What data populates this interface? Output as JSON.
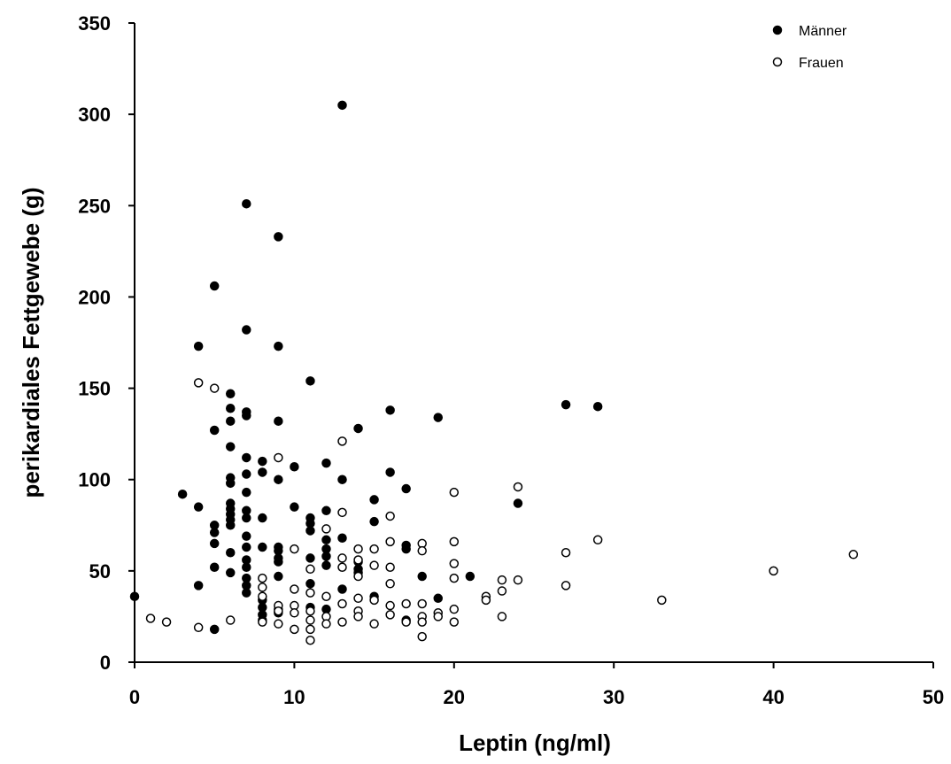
{
  "chart_data": {
    "type": "scatter",
    "title": "",
    "xlabel": "Leptin (ng/ml)",
    "ylabel": "perikardiales Fettgewebe (g)",
    "xlim": [
      0,
      50
    ],
    "ylim": [
      0,
      350
    ],
    "xticks": [
      0,
      10,
      20,
      30,
      40,
      50
    ],
    "yticks": [
      0,
      50,
      100,
      150,
      200,
      250,
      300,
      350
    ],
    "grid": false,
    "legend_position": "top-right",
    "series": [
      {
        "name": "Männer",
        "marker": "filled-circle",
        "color": "#000000",
        "points": [
          [
            0,
            36
          ],
          [
            3,
            92
          ],
          [
            4,
            173
          ],
          [
            4,
            85
          ],
          [
            4,
            42
          ],
          [
            5,
            206
          ],
          [
            5,
            127
          ],
          [
            5,
            75
          ],
          [
            5,
            71
          ],
          [
            5,
            65
          ],
          [
            5,
            52
          ],
          [
            5,
            18
          ],
          [
            6,
            147
          ],
          [
            6,
            139
          ],
          [
            6,
            132
          ],
          [
            6,
            118
          ],
          [
            6,
            101
          ],
          [
            6,
            98
          ],
          [
            6,
            87
          ],
          [
            6,
            84
          ],
          [
            6,
            81
          ],
          [
            6,
            78
          ],
          [
            6,
            75
          ],
          [
            6,
            60
          ],
          [
            6,
            49
          ],
          [
            7,
            251
          ],
          [
            7,
            182
          ],
          [
            7,
            137
          ],
          [
            7,
            135
          ],
          [
            7,
            112
          ],
          [
            7,
            103
          ],
          [
            7,
            93
          ],
          [
            7,
            83
          ],
          [
            7,
            79
          ],
          [
            7,
            69
          ],
          [
            7,
            63
          ],
          [
            7,
            56
          ],
          [
            7,
            52
          ],
          [
            7,
            46
          ],
          [
            7,
            42
          ],
          [
            7,
            38
          ],
          [
            8,
            110
          ],
          [
            8,
            104
          ],
          [
            8,
            79
          ],
          [
            8,
            63
          ],
          [
            8,
            34
          ],
          [
            8,
            30
          ],
          [
            8,
            26
          ],
          [
            8,
            23
          ],
          [
            9,
            233
          ],
          [
            9,
            173
          ],
          [
            9,
            132
          ],
          [
            9,
            100
          ],
          [
            9,
            63
          ],
          [
            9,
            61
          ],
          [
            9,
            57
          ],
          [
            9,
            55
          ],
          [
            9,
            47
          ],
          [
            9,
            29
          ],
          [
            9,
            27
          ],
          [
            10,
            107
          ],
          [
            10,
            85
          ],
          [
            11,
            154
          ],
          [
            11,
            79
          ],
          [
            11,
            76
          ],
          [
            11,
            72
          ],
          [
            11,
            57
          ],
          [
            11,
            43
          ],
          [
            11,
            30
          ],
          [
            12,
            109
          ],
          [
            12,
            83
          ],
          [
            12,
            67
          ],
          [
            12,
            62
          ],
          [
            12,
            58
          ],
          [
            12,
            53
          ],
          [
            12,
            29
          ],
          [
            13,
            305
          ],
          [
            13,
            100
          ],
          [
            13,
            68
          ],
          [
            13,
            40
          ],
          [
            14,
            128
          ],
          [
            14,
            55
          ],
          [
            14,
            51
          ],
          [
            14,
            49
          ],
          [
            15,
            89
          ],
          [
            15,
            77
          ],
          [
            15,
            36
          ],
          [
            16,
            138
          ],
          [
            16,
            104
          ],
          [
            17,
            95
          ],
          [
            17,
            64
          ],
          [
            17,
            62
          ],
          [
            17,
            23
          ],
          [
            18,
            47
          ],
          [
            19,
            134
          ],
          [
            19,
            35
          ],
          [
            21,
            47
          ],
          [
            24,
            87
          ],
          [
            27,
            141
          ],
          [
            29,
            140
          ]
        ]
      },
      {
        "name": "Frauen",
        "marker": "open-circle",
        "color": "#000000",
        "points": [
          [
            1,
            24
          ],
          [
            2,
            22
          ],
          [
            4,
            153
          ],
          [
            4,
            19
          ],
          [
            5,
            150
          ],
          [
            6,
            23
          ],
          [
            8,
            46
          ],
          [
            8,
            41
          ],
          [
            8,
            36
          ],
          [
            8,
            22
          ],
          [
            9,
            112
          ],
          [
            9,
            31
          ],
          [
            9,
            28
          ],
          [
            9,
            21
          ],
          [
            10,
            62
          ],
          [
            10,
            40
          ],
          [
            10,
            31
          ],
          [
            10,
            27
          ],
          [
            10,
            18
          ],
          [
            11,
            51
          ],
          [
            11,
            38
          ],
          [
            11,
            28
          ],
          [
            11,
            23
          ],
          [
            11,
            18
          ],
          [
            11,
            12
          ],
          [
            12,
            73
          ],
          [
            12,
            36
          ],
          [
            12,
            25
          ],
          [
            12,
            21
          ],
          [
            13,
            121
          ],
          [
            13,
            82
          ],
          [
            13,
            57
          ],
          [
            13,
            52
          ],
          [
            13,
            32
          ],
          [
            13,
            22
          ],
          [
            14,
            62
          ],
          [
            14,
            56
          ],
          [
            14,
            47
          ],
          [
            14,
            35
          ],
          [
            14,
            28
          ],
          [
            14,
            25
          ],
          [
            15,
            62
          ],
          [
            15,
            53
          ],
          [
            15,
            34
          ],
          [
            15,
            21
          ],
          [
            16,
            80
          ],
          [
            16,
            66
          ],
          [
            16,
            52
          ],
          [
            16,
            43
          ],
          [
            16,
            31
          ],
          [
            16,
            26
          ],
          [
            17,
            32
          ],
          [
            17,
            22
          ],
          [
            18,
            65
          ],
          [
            18,
            61
          ],
          [
            18,
            32
          ],
          [
            18,
            25
          ],
          [
            18,
            22
          ],
          [
            18,
            14
          ],
          [
            19,
            27
          ],
          [
            19,
            25
          ],
          [
            20,
            93
          ],
          [
            20,
            66
          ],
          [
            20,
            54
          ],
          [
            20,
            46
          ],
          [
            20,
            29
          ],
          [
            20,
            22
          ],
          [
            22,
            36
          ],
          [
            22,
            34
          ],
          [
            23,
            45
          ],
          [
            23,
            39
          ],
          [
            23,
            25
          ],
          [
            24,
            96
          ],
          [
            24,
            45
          ],
          [
            27,
            60
          ],
          [
            27,
            42
          ],
          [
            29,
            67
          ],
          [
            33,
            34
          ],
          [
            40,
            50
          ],
          [
            45,
            59
          ]
        ]
      }
    ]
  }
}
